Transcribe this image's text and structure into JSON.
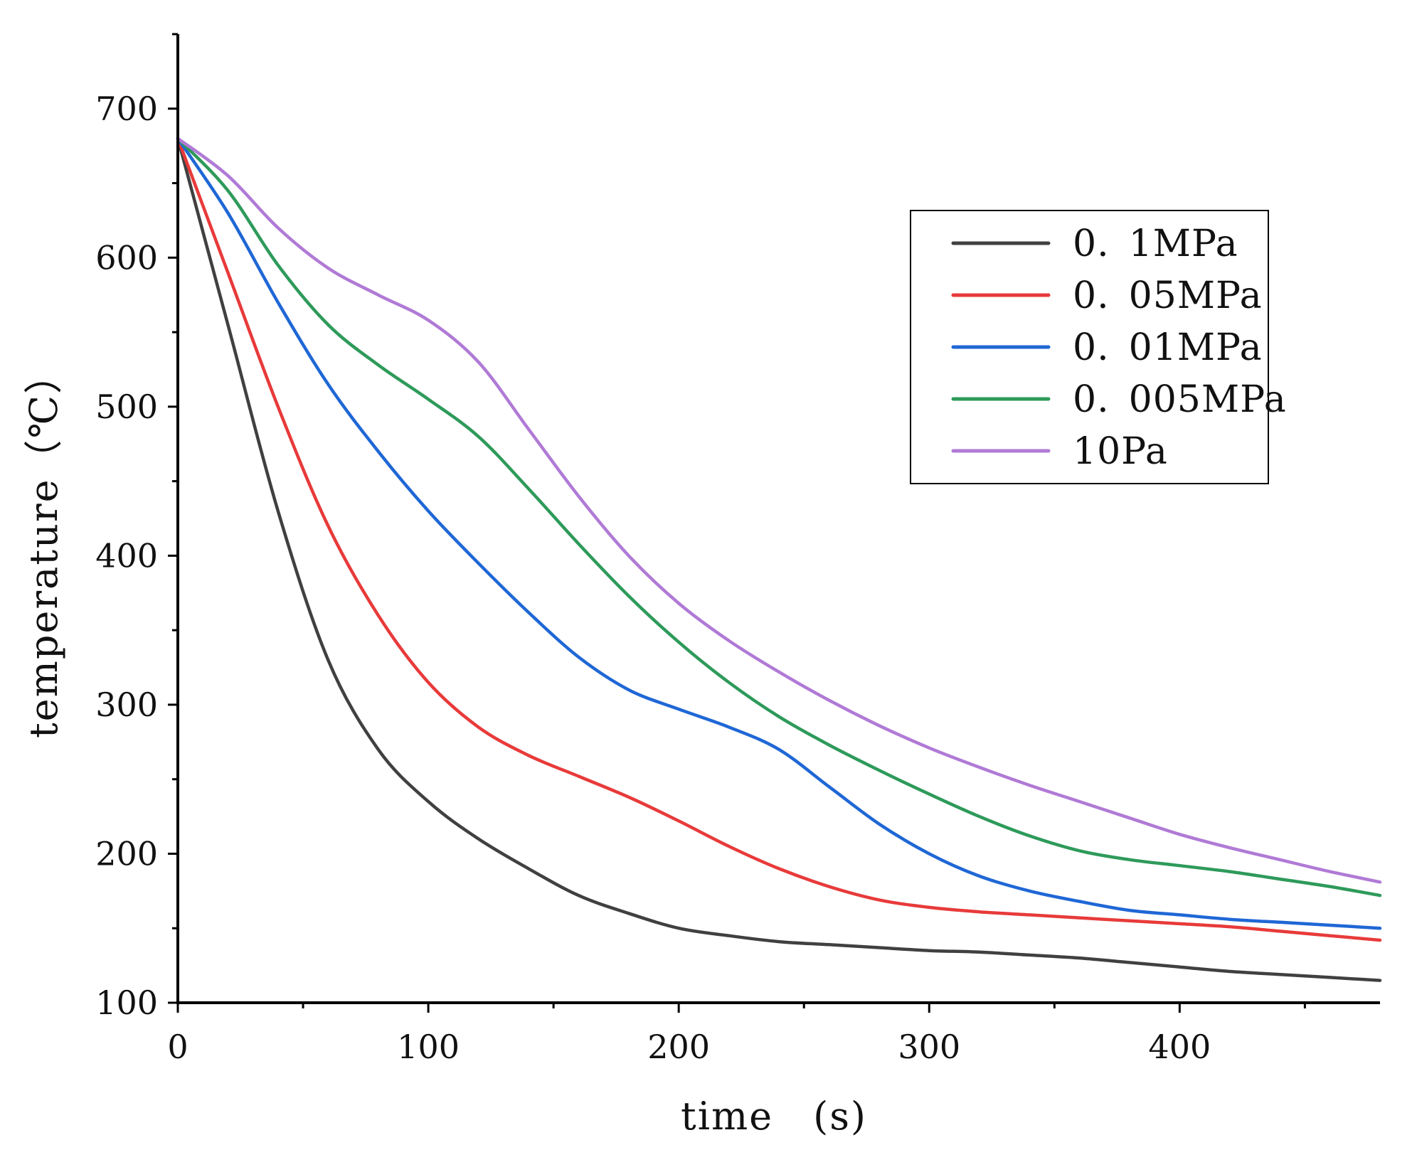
{
  "chart_data": {
    "type": "line",
    "title": "",
    "xlabel": "time　(s)",
    "ylabel": "temperature（℃）",
    "xlim": [
      0,
      480
    ],
    "ylim": [
      100,
      750
    ],
    "xticks": [
      0,
      100,
      200,
      300,
      400
    ],
    "xtick_labels": [
      "0",
      "100",
      "200",
      "300",
      "400"
    ],
    "xminor": [
      50,
      150,
      250,
      350,
      450
    ],
    "yticks": [
      100,
      200,
      300,
      400,
      500,
      600,
      700
    ],
    "ytick_labels": [
      "100",
      "200",
      "300",
      "400",
      "500",
      "600",
      "700"
    ],
    "yminor": [
      150,
      250,
      350,
      450,
      550,
      650,
      750
    ],
    "grid": false,
    "legend_position": "top-right",
    "x": [
      0,
      20,
      40,
      60,
      80,
      100,
      120,
      140,
      160,
      180,
      200,
      220,
      240,
      260,
      280,
      300,
      320,
      340,
      360,
      380,
      400,
      420,
      440,
      460,
      480
    ],
    "series": [
      {
        "name": "0. 1MPa",
        "color": "#404040",
        "values": [
          680,
          555,
          430,
          330,
          270,
          235,
          210,
          190,
          172,
          160,
          150,
          145,
          141,
          139,
          137,
          135,
          134,
          132,
          130,
          127,
          124,
          121,
          119,
          117,
          115
        ]
      },
      {
        "name": "0. 05MPa",
        "color": "#e83a3a",
        "values": [
          680,
          590,
          500,
          420,
          360,
          315,
          285,
          266,
          252,
          238,
          222,
          205,
          190,
          178,
          169,
          164,
          161,
          159,
          157,
          155,
          153,
          151,
          148,
          145,
          142
        ]
      },
      {
        "name": "0. 01MPa",
        "color": "#1f67d6",
        "values": [
          680,
          630,
          570,
          515,
          470,
          430,
          395,
          362,
          332,
          310,
          297,
          285,
          270,
          245,
          220,
          200,
          185,
          175,
          168,
          162,
          159,
          156,
          154,
          152,
          150
        ]
      },
      {
        "name": "0. 005MPa",
        "color": "#2e9a5a",
        "values": [
          680,
          645,
          595,
          555,
          528,
          505,
          480,
          445,
          408,
          373,
          342,
          315,
          292,
          273,
          256,
          240,
          225,
          212,
          202,
          196,
          192,
          188,
          183,
          178,
          172
        ]
      },
      {
        "name": "10Pa",
        "color": "#b07ad6",
        "values": [
          680,
          655,
          620,
          593,
          575,
          558,
          530,
          485,
          440,
          400,
          368,
          343,
          322,
          303,
          286,
          271,
          258,
          246,
          235,
          224,
          213,
          204,
          196,
          188,
          181
        ]
      }
    ]
  }
}
